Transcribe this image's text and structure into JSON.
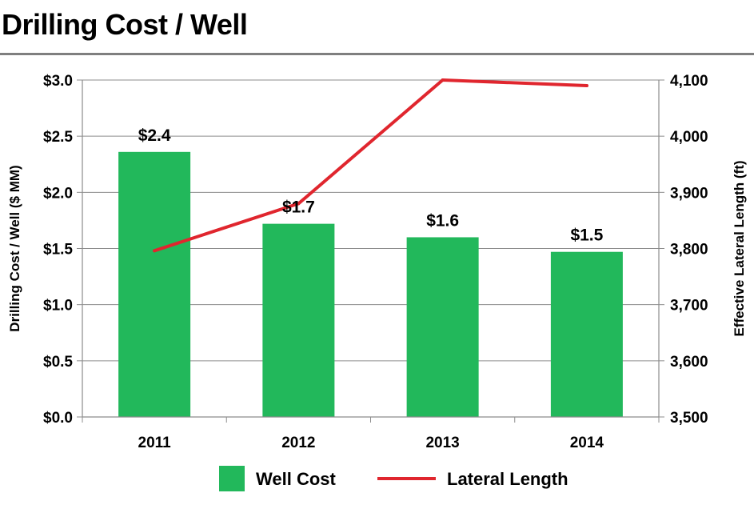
{
  "page": {
    "title": "Drilling Cost / Well"
  },
  "chart_data": {
    "type": "bar",
    "categories": [
      "2011",
      "2012",
      "2013",
      "2014"
    ],
    "series": [
      {
        "name": "Well Cost",
        "type": "bar",
        "axis": "left",
        "values": [
          2.36,
          1.72,
          1.6,
          1.47
        ],
        "labels": [
          "$2.4",
          "$1.7",
          "$1.6",
          "$1.5"
        ],
        "color": "#22b85b"
      },
      {
        "name": "Lateral Length",
        "type": "line",
        "axis": "right",
        "values": [
          3796,
          3880,
          4100,
          4090
        ],
        "color": "#e0262e"
      }
    ],
    "ylabel": "Drilling Cost / Well ($ MM)",
    "ylabel_right": "Effective Lateral Length (ft)",
    "ylim": [
      0,
      3.0
    ],
    "ylim_right": [
      3500,
      4100
    ],
    "yticks": [
      "$0.0",
      "$0.5",
      "$1.0",
      "$1.5",
      "$2.0",
      "$2.5",
      "$3.0"
    ],
    "yticks_right": [
      "3,500",
      "3,600",
      "3,700",
      "3,800",
      "3,900",
      "4,000",
      "4,100"
    ],
    "grid": true,
    "legend": "bottom"
  }
}
